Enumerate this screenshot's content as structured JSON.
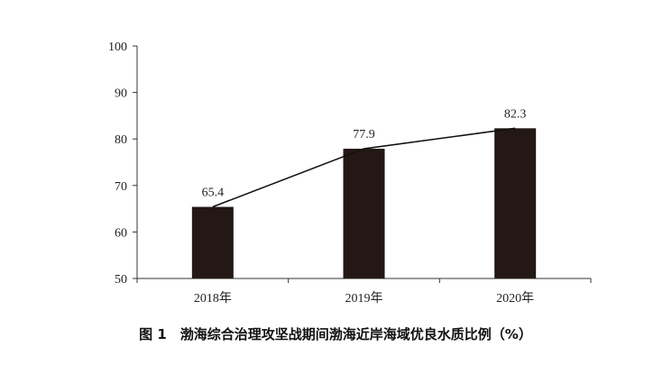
{
  "chart_data": {
    "type": "bar",
    "title": "图 1　渤海综合治理攻坚战期间渤海近岸海域优良水质比例（%）",
    "categories": [
      "2018年",
      "2019年",
      "2020年"
    ],
    "values": [
      65.4,
      77.9,
      82.3
    ],
    "data_labels": [
      "65.4",
      "77.9",
      "82.3"
    ],
    "yticks": [
      "50",
      "60",
      "70",
      "80",
      "90",
      "100"
    ],
    "ylim": [
      50,
      100
    ],
    "xlabel": "",
    "ylabel": "",
    "overlay": "line",
    "grid": false,
    "legend": "none",
    "bar_color": "#231815",
    "line_color": "#111111"
  }
}
